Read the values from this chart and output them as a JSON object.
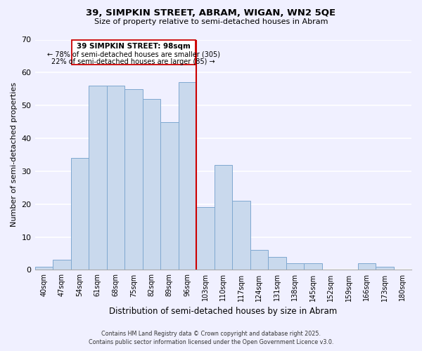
{
  "title": "39, SIMPKIN STREET, ABRAM, WIGAN, WN2 5QE",
  "subtitle": "Size of property relative to semi-detached houses in Abram",
  "xlabel": "Distribution of semi-detached houses by size in Abram",
  "ylabel": "Number of semi-detached properties",
  "bar_labels": [
    "40sqm",
    "47sqm",
    "54sqm",
    "61sqm",
    "68sqm",
    "75sqm",
    "82sqm",
    "89sqm",
    "96sqm",
    "103sqm",
    "110sqm",
    "117sqm",
    "124sqm",
    "131sqm",
    "138sqm",
    "145sqm",
    "152sqm",
    "159sqm",
    "166sqm",
    "173sqm",
    "180sqm"
  ],
  "bar_values": [
    1,
    3,
    34,
    56,
    56,
    55,
    52,
    45,
    57,
    19,
    32,
    21,
    6,
    4,
    2,
    2,
    0,
    0,
    2,
    1,
    0
  ],
  "bar_color": "#c9d9ed",
  "bar_edge_color": "#7fa8d0",
  "highlight_line_label": "39 SIMPKIN STREET: 98sqm",
  "annotation_line1": "← 78% of semi-detached houses are smaller (305)",
  "annotation_line2": "22% of semi-detached houses are larger (85) →",
  "ylim": [
    0,
    70
  ],
  "yticks": [
    0,
    10,
    20,
    30,
    40,
    50,
    60,
    70
  ],
  "footer_line1": "Contains HM Land Registry data © Crown copyright and database right 2025.",
  "footer_line2": "Contains public sector information licensed under the Open Government Licence v3.0.",
  "bg_color": "#f0f0ff",
  "grid_color": "#ffffff",
  "annotation_box_edge": "#cc0000",
  "red_line_index": 8
}
